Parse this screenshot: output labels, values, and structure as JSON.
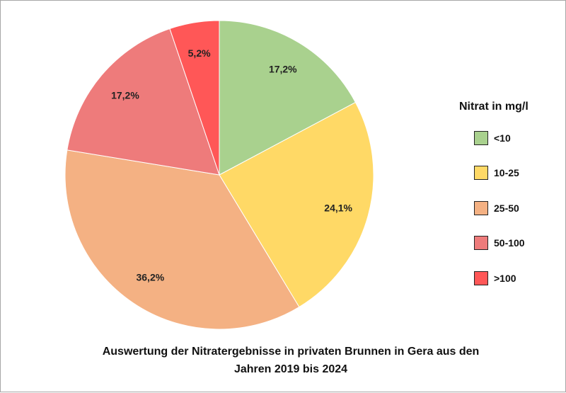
{
  "chart_data": {
    "type": "pie",
    "title_line1": "Auswertung der Nitratergebnisse in privaten Brunnen in Gera aus den",
    "title_line2": "Jahren 2019 bis 2024",
    "legend_title": "Nitrat in mg/l",
    "legend_position": "right",
    "slices": [
      {
        "name": "<10",
        "value": 17.2,
        "label": "17,2%",
        "color": "#a9d18e"
      },
      {
        "name": "10-25",
        "value": 24.1,
        "label": "24,1%",
        "color": "#ffd966"
      },
      {
        "name": "25-50",
        "value": 36.2,
        "label": "36,2%",
        "color": "#f4b183"
      },
      {
        "name": "50-100",
        "value": 17.2,
        "label": "17,2%",
        "color": "#ee7b7b"
      },
      {
        "name": ">100",
        "value": 5.2,
        "label": "5,2%",
        "color": "#ff5757"
      }
    ]
  }
}
